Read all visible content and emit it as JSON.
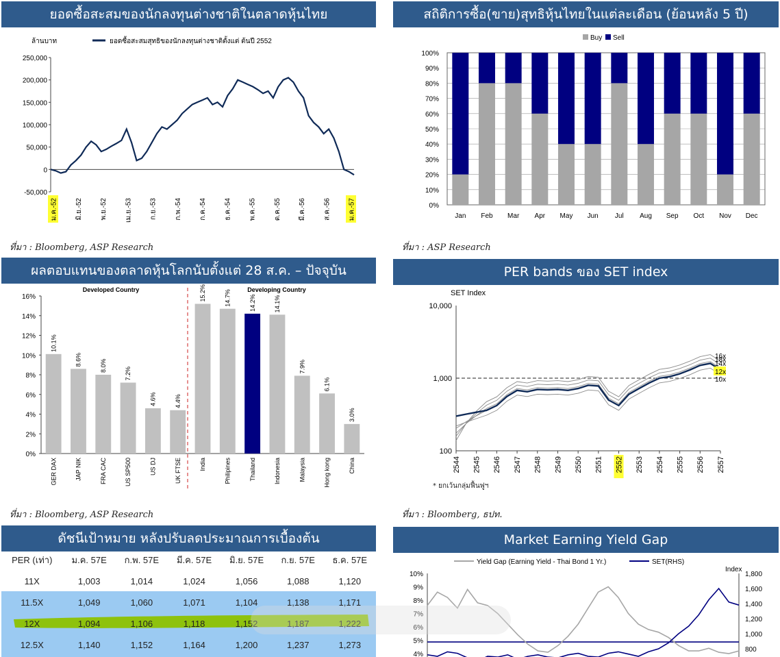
{
  "panels": {
    "p1": {
      "title": "ยอดซื้อสะสมของนักลงทุนต่างชาติในตลาดหุ้นไทย",
      "source": "ที่มา : Bloomberg, ASP Research"
    },
    "p2": {
      "title": "สถิติการซื้อ(ขาย)สุทธิหุ้นไทยในแต่ละเดือน (ย้อนหลัง 5 ปี)",
      "source": "ที่มา : ASP Research"
    },
    "p3": {
      "title": "ผลตอบแทนของตลาดหุ้นโลกนับตั้งแต่ 28 ส.ค. – ปัจจุบัน",
      "source": "ที่มา :  Bloomberg, ASP Research"
    },
    "p4": {
      "title": "PER bands ของ SET index",
      "source": "ที่มา : Bloomberg, ธปท.",
      "note": "* ยกเว้นกลุ่มฟื้นฟูฯ"
    },
    "p5": {
      "title": "ดัชนีเป้าหมาย หลังปรับลดประมาณการเบื้องต้น"
    },
    "p6": {
      "title": "Market Earning Yield Gap"
    }
  },
  "chart_data": [
    {
      "type": "line",
      "ylabel": "ล้านบาท",
      "series_name": "ยอดซื้อสะสมสุทธิของนักลงทุนต่างชาติตั้งแต่ ต้นปี 2552",
      "ylim": [
        -50000,
        250000
      ],
      "yticks": [
        "-50,000",
        "0",
        "50,000",
        "100,000",
        "150,000",
        "200,000",
        "250,000"
      ],
      "x_labels": [
        "ม.ค.-52",
        "มิ.ย.-52",
        "พ.ย.-52",
        "เม.ย.-53",
        "ก.ย.-53",
        "ก.พ.-54",
        "ก.ค.-54",
        "ธ.ค.-54",
        "พ.ค.-55",
        "ต.ค.-55",
        "มี.ค.-56",
        "ส.ค.-56",
        "ม.ค.-57"
      ],
      "highlight_labels": [
        "ม.ค.-52",
        "ม.ค.-57"
      ],
      "x": [
        0,
        1,
        2,
        3,
        4,
        5,
        6,
        7,
        8,
        9,
        10,
        11,
        12,
        13,
        14,
        15,
        16,
        17,
        18,
        19,
        20,
        21,
        22,
        23,
        24,
        25,
        26,
        27,
        28,
        29,
        30,
        31,
        32,
        33,
        34,
        35,
        36,
        37,
        38,
        39,
        40,
        41,
        42,
        43,
        44,
        45,
        46,
        47,
        48,
        49,
        50,
        51,
        52,
        53,
        54,
        55,
        56,
        57,
        58,
        59,
        60
      ],
      "values": [
        0,
        -3000,
        -8000,
        -5000,
        10000,
        20000,
        32000,
        50000,
        63000,
        55000,
        40000,
        45000,
        52000,
        58000,
        65000,
        90000,
        60000,
        20000,
        25000,
        40000,
        60000,
        80000,
        95000,
        90000,
        100000,
        110000,
        125000,
        135000,
        145000,
        150000,
        155000,
        160000,
        145000,
        150000,
        140000,
        165000,
        180000,
        200000,
        195000,
        190000,
        185000,
        178000,
        170000,
        175000,
        160000,
        185000,
        200000,
        205000,
        195000,
        175000,
        160000,
        120000,
        105000,
        95000,
        80000,
        90000,
        70000,
        40000,
        0,
        -5000,
        -12000
      ]
    },
    {
      "type": "bar",
      "stacked": true,
      "legend": [
        "Buy",
        "Sell"
      ],
      "colors": {
        "buy": "#a6a6a6",
        "sell": "#000080"
      },
      "categories": [
        "Jan",
        "Feb",
        "Mar",
        "Apr",
        "May",
        "Jun",
        "Jul",
        "Aug",
        "Sep",
        "Oct",
        "Nov",
        "Dec"
      ],
      "buy": [
        20,
        80,
        80,
        60,
        40,
        40,
        80,
        40,
        60,
        60,
        20,
        60
      ],
      "sell": [
        80,
        20,
        20,
        40,
        60,
        60,
        20,
        60,
        40,
        40,
        80,
        40
      ],
      "ylim": [
        0,
        100
      ],
      "yticks": [
        "0%",
        "10%",
        "20%",
        "30%",
        "40%",
        "50%",
        "60%",
        "70%",
        "80%",
        "90%",
        "100%"
      ]
    },
    {
      "type": "bar",
      "group_labels": [
        "Developed Country",
        "Developing Country"
      ],
      "categories": [
        "GER DAX",
        "JAP NIK",
        "FRA CAC",
        "US SP500",
        "US DJ",
        "UK FTSE",
        "India",
        "Philipines",
        "Thailand",
        "Indonesia",
        "Malaysia",
        "Hong kong",
        "China"
      ],
      "values": [
        10.1,
        8.6,
        8.0,
        7.2,
        4.6,
        4.4,
        15.2,
        14.7,
        14.2,
        14.1,
        7.9,
        6.1,
        3.0
      ],
      "value_labels": [
        "10.1%",
        "8.6%",
        "8.0%",
        "7.2%",
        "4.6%",
        "4.4%",
        "15.2%",
        "14.7%",
        "14.2%",
        "14.1%",
        "7.9%",
        "6.1%",
        "3.0%"
      ],
      "highlight": "Thailand",
      "ylim": [
        0,
        16
      ],
      "yticks": [
        "0%",
        "2%",
        "4%",
        "6%",
        "8%",
        "10%",
        "12%",
        "14%",
        "16%"
      ]
    },
    {
      "type": "line",
      "log_scale": true,
      "ylabel": "SET Index",
      "ylim": [
        100,
        10000
      ],
      "yticks": [
        "100",
        "1,000",
        "10,000"
      ],
      "x_labels": [
        "2544",
        "2545",
        "2546",
        "2547",
        "2548",
        "2549",
        "2550",
        "2551",
        "2552",
        "2553",
        "2554",
        "2555",
        "2556",
        "2557"
      ],
      "highlight_x": "2552",
      "band_labels": [
        "18x",
        "16x",
        "14x",
        "12x",
        "10x"
      ],
      "highlight_band": "12x",
      "x": [
        2544,
        2544.5,
        2545,
        2545.5,
        2546,
        2546.5,
        2547,
        2547.5,
        2548,
        2548.5,
        2549,
        2549.5,
        2550,
        2550.5,
        2551,
        2551.5,
        2552,
        2552.5,
        2553,
        2553.5,
        2554,
        2554.5,
        2555,
        2555.5,
        2556,
        2556.5,
        2557
      ],
      "values": [
        300,
        320,
        340,
        360,
        420,
        560,
        680,
        650,
        700,
        690,
        700,
        680,
        720,
        800,
        780,
        500,
        420,
        600,
        720,
        860,
        1000,
        1050,
        1150,
        1300,
        1500,
        1600,
        1300
      ]
    },
    {
      "type": "table",
      "columns": [
        "PER (เท่า)",
        "ม.ค. 57E",
        "ก.พ. 57E",
        "มี.ค. 57E",
        "มิ.ย. 57E",
        "ก.ย. 57E",
        "ธ.ค. 57E"
      ],
      "rows": [
        [
          "11X",
          "1,003",
          "1,014",
          "1,024",
          "1,056",
          "1,088",
          "1,120"
        ],
        [
          "11.5X",
          "1,049",
          "1,060",
          "1,071",
          "1,104",
          "1,138",
          "1,171"
        ],
        [
          "12X",
          "1,094",
          "1,106",
          "1,118",
          "1,152",
          "1,187",
          "1,222"
        ],
        [
          "12.5X",
          "1,140",
          "1,152",
          "1,164",
          "1,200",
          "1,237",
          "1,273"
        ]
      ],
      "highlight_row": "12X"
    },
    {
      "type": "line",
      "series": [
        {
          "name": "Yield Gap (Earning Yield - Thai Bond 1 Yr.)",
          "axis": "left",
          "values": [
            7.6,
            8.6,
            8.2,
            7.4,
            8.8,
            7.8,
            7.6,
            7.0,
            6.2,
            5.4,
            4.7,
            4.2,
            4.1,
            4.6,
            5.3,
            6.2,
            7.4,
            8.6,
            9.0,
            8.2,
            7.0,
            6.2,
            5.8,
            5.6,
            5.2,
            4.6,
            4.2,
            4.2,
            4.4,
            4.1,
            4.0,
            4.2
          ]
        },
        {
          "name": "SET(RHS)",
          "axis": "right",
          "values": [
            720,
            700,
            760,
            740,
            680,
            640,
            700,
            690,
            720,
            660,
            700,
            720,
            690,
            680,
            720,
            740,
            700,
            690,
            740,
            760,
            730,
            700,
            760,
            800,
            880,
            1000,
            1100,
            1250,
            1450,
            1600,
            1420,
            1380
          ]
        }
      ],
      "ylim_left": [
        4,
        10
      ],
      "ylim_right": [
        800,
        1800
      ],
      "yticks_left": [
        "4%",
        "5%",
        "6%",
        "7%",
        "8%",
        "9%",
        "10%"
      ],
      "yticks_right": [
        "800",
        "1,000",
        "1,200",
        "1,400",
        "1,600",
        "1,800"
      ],
      "right_axis_label": "Index",
      "ref_line": 4.87
    }
  ]
}
